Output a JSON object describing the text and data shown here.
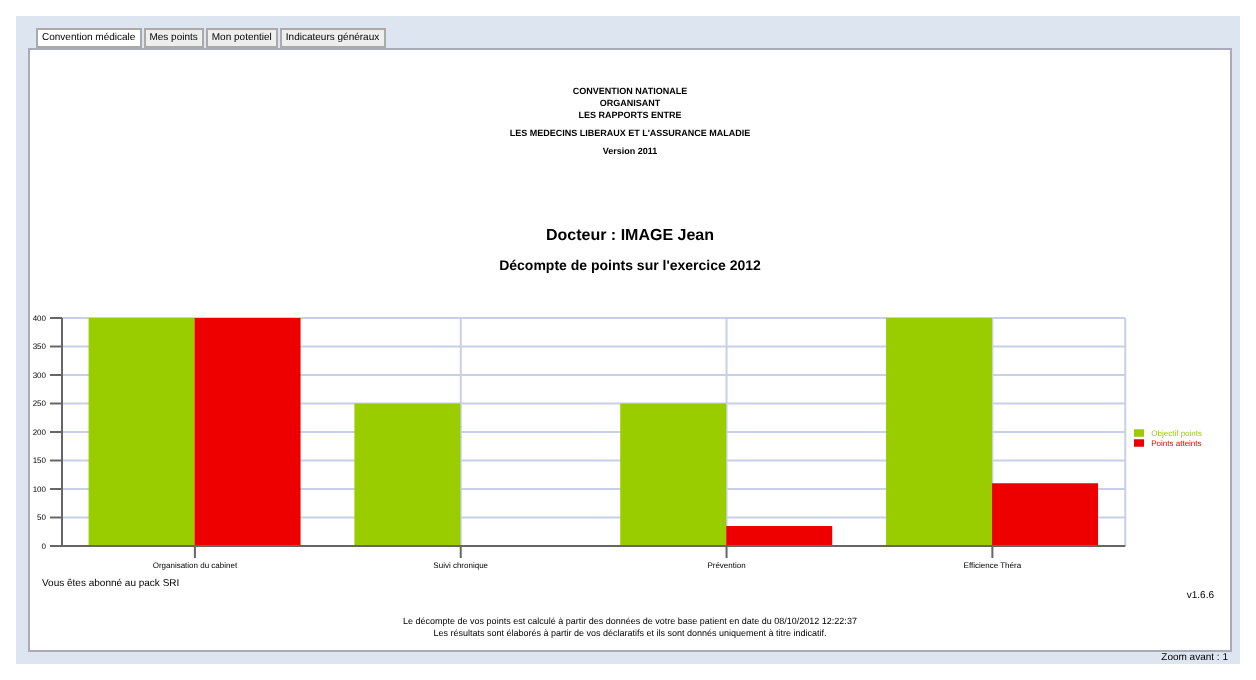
{
  "chart_data": {
    "type": "bar",
    "title": "Docteur : IMAGE Jean",
    "subtitle": "Décompte de points sur l'exercice 2012",
    "categories": [
      "Organisation du cabinet",
      "Suivi chronique",
      "Prévention",
      "Efficience Théra"
    ],
    "series": [
      {
        "name": "Objectif points",
        "color": "#9acd00",
        "values": [
          400,
          250,
          250,
          400
        ]
      },
      {
        "name": "Points atteints",
        "color": "#ee0000",
        "values": [
          400,
          0,
          35,
          110
        ]
      }
    ],
    "ylim": [
      0,
      400
    ],
    "yticks": [
      0,
      50,
      100,
      150,
      200,
      250,
      300,
      350,
      400
    ],
    "grid": true,
    "legend": "right",
    "annotations": [
      "Convention médicale",
      "Mes points",
      "Mon potentiel",
      "Indicateurs généraux",
      "CONVENTION NATIONALE",
      "ORGANISANT",
      "LES RAPPORTS ENTRE",
      "LES MEDECINS LIBERAUX ET L'ASSURANCE MALADIE",
      "Version 2011",
      "Vous êtes abonné au pack SRI",
      "v1.6.6",
      "Le décompte de vos points est calculé à partir des données de votre base patient en date du 08/10/2012 12:22:37",
      "Les résultats sont élaborés à partir de vos déclaratifs et ils sont donnés uniquement à titre indicatif.",
      "Zoom avant : 1"
    ]
  }
}
